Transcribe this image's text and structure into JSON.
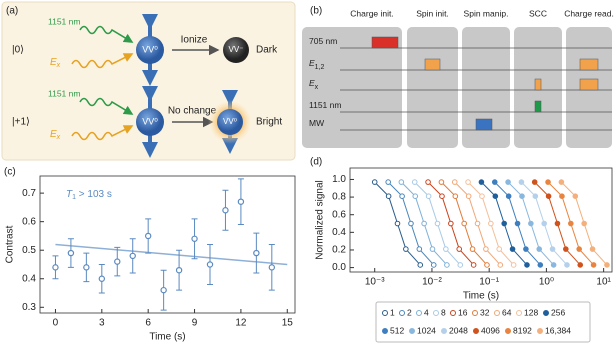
{
  "panel_a": {
    "label": "(a)",
    "rows": [
      {
        "state": "|0⟩",
        "wavelength": "1151 nm",
        "drive": {
          "main": "E",
          "sub": "x"
        },
        "center": "VV⁰",
        "action": "Ionize",
        "outcome_center": "VV⁻",
        "result": "Dark"
      },
      {
        "state": "|+1⟩",
        "wavelength": "1151 nm",
        "drive": {
          "main": "E",
          "sub": "x"
        },
        "center": "VV⁰",
        "action": "No change",
        "outcome_center": "VV⁰",
        "result": "Bright"
      }
    ]
  },
  "panel_b": {
    "label": "(b)",
    "stages": [
      "Charge init.",
      "Spin init.",
      "Spin manip.",
      "SCC",
      "Charge read."
    ],
    "channels": [
      {
        "main": "705 nm"
      },
      {
        "main": "E",
        "sub": "1,2"
      },
      {
        "main": "E",
        "sub": "x"
      },
      {
        "main": "1151 nm"
      },
      {
        "main": "MW"
      }
    ]
  },
  "chart_data": [
    {
      "type": "scatter",
      "panel_label": "(c)",
      "xlabel": "Time (s)",
      "ylabel": "Contrast",
      "annotation": {
        "main": "T",
        "sub": "1",
        "rest": " > 103 s"
      },
      "x": [
        0,
        1,
        2,
        3,
        4,
        5,
        6,
        7,
        8,
        9,
        10,
        11,
        12,
        13,
        14
      ],
      "values": [
        0.44,
        0.49,
        0.44,
        0.4,
        0.46,
        0.48,
        0.55,
        0.36,
        0.43,
        0.54,
        0.45,
        0.64,
        0.67,
        0.49,
        0.44
      ],
      "errors": [
        0.04,
        0.05,
        0.05,
        0.05,
        0.05,
        0.06,
        0.06,
        0.07,
        0.07,
        0.07,
        0.07,
        0.07,
        0.08,
        0.07,
        0.08
      ],
      "color": "#5b8ac0",
      "fit": {
        "x": [
          0,
          15
        ],
        "y": [
          0.52,
          0.45
        ],
        "color": "#8fb0d6"
      },
      "xlim": [
        -1,
        15.5
      ],
      "ylim": [
        0.28,
        0.76
      ],
      "xticks": [
        0,
        3,
        6,
        9,
        12,
        15
      ],
      "yticks": [
        0.3,
        0.4,
        0.5,
        0.6,
        0.7
      ]
    },
    {
      "type": "line",
      "panel_label": "(d)",
      "xlabel": "Time (s)",
      "ylabel": "Normalized signal",
      "xscale": "log",
      "xlim": [
        0.00037,
        14
      ],
      "ylim": [
        -0.05,
        1.13
      ],
      "xticks": [
        {
          "value": 0.001,
          "label": "10⁻³"
        },
        {
          "value": 0.01,
          "label": "10⁻²"
        },
        {
          "value": 0.1,
          "label": "10⁻¹"
        },
        {
          "value": 1,
          "label": "10⁰"
        },
        {
          "value": 10,
          "label": "10¹"
        }
      ],
      "yticks": [
        {
          "value": 0,
          "label": "0.0"
        },
        0.2,
        0.4,
        0.6,
        0.8,
        {
          "value": 1,
          "label": "1.0"
        }
      ],
      "series": [
        {
          "name": "1",
          "color": "#2b5c8a",
          "marker": "open",
          "x": [
            0.001,
            0.00175,
            0.0025,
            0.0035,
            0.00625
          ],
          "values": [
            0.97,
            0.81,
            0.5,
            0.21,
            0.03
          ]
        },
        {
          "name": "2",
          "color": "#4a86b8",
          "marker": "open",
          "x": [
            0.00172,
            0.00301,
            0.0043,
            0.00602,
            0.01075
          ],
          "values": [
            0.97,
            0.81,
            0.5,
            0.21,
            0.03
          ]
        },
        {
          "name": "4",
          "color": "#7fb0d8",
          "marker": "open",
          "x": [
            0.00292,
            0.00511,
            0.0073,
            0.01022,
            0.01825
          ],
          "values": [
            0.97,
            0.81,
            0.5,
            0.21,
            0.03
          ]
        },
        {
          "name": "8",
          "color": "#a9cae6",
          "marker": "open",
          "x": [
            0.005,
            0.00875,
            0.0125,
            0.0175,
            0.03125
          ],
          "values": [
            0.97,
            0.81,
            0.5,
            0.21,
            0.03
          ]
        },
        {
          "name": "16",
          "color": "#c8431e",
          "marker": "open",
          "x": [
            0.00856,
            0.01498,
            0.0214,
            0.02996,
            0.0535
          ],
          "values": [
            0.97,
            0.81,
            0.5,
            0.21,
            0.03
          ]
        },
        {
          "name": "32",
          "color": "#e07b3a",
          "marker": "open",
          "x": [
            0.01464,
            0.02562,
            0.0366,
            0.05124,
            0.0915
          ],
          "values": [
            0.97,
            0.81,
            0.5,
            0.21,
            0.03
          ]
        },
        {
          "name": "64",
          "color": "#f0a878",
          "marker": "open",
          "x": [
            0.02504,
            0.04382,
            0.0626,
            0.08764,
            0.1565
          ],
          "values": [
            0.97,
            0.81,
            0.5,
            0.21,
            0.03
          ]
        },
        {
          "name": "128",
          "color": "#f3bf9a",
          "marker": "open",
          "x": [
            0.0428,
            0.0749,
            0.107,
            0.1498,
            0.2675
          ],
          "values": [
            0.97,
            0.81,
            0.5,
            0.21,
            0.03
          ]
        },
        {
          "name": "256",
          "color": "#1f5f9c",
          "marker": "filled",
          "x": [
            0.0732,
            0.1281,
            0.183,
            0.2562,
            0.4575
          ],
          "values": [
            0.97,
            0.81,
            0.5,
            0.21,
            0.03
          ]
        },
        {
          "name": "512",
          "color": "#3f7fbf",
          "marker": "filled",
          "x": [
            0.1252,
            0.2191,
            0.313,
            0.4382,
            0.7825
          ],
          "values": [
            0.97,
            0.81,
            0.5,
            0.21,
            0.03
          ]
        },
        {
          "name": "1024",
          "color": "#8ab7de",
          "marker": "filled",
          "x": [
            0.214,
            0.3745,
            0.535,
            0.749,
            1.3375
          ],
          "values": [
            0.97,
            0.81,
            0.5,
            0.21,
            0.03
          ]
        },
        {
          "name": "2048",
          "color": "#b4d0ea",
          "marker": "filled",
          "x": [
            0.366,
            0.6405,
            0.915,
            1.281,
            2.2875
          ],
          "values": [
            0.97,
            0.81,
            0.5,
            0.21,
            0.03
          ]
        },
        {
          "name": "4096",
          "color": "#d0521c",
          "marker": "filled",
          "x": [
            0.624,
            1.092,
            1.56,
            2.184,
            3.9
          ],
          "values": [
            0.97,
            0.81,
            0.5,
            0.21,
            0.03
          ]
        },
        {
          "name": "8192",
          "color": "#e8843f",
          "marker": "filled",
          "x": [
            1.068,
            1.869,
            2.67,
            3.738,
            6.675
          ],
          "values": [
            0.97,
            0.81,
            0.5,
            0.21,
            0.03
          ]
        },
        {
          "name": "16,384",
          "color": "#f3b07c",
          "marker": "filled",
          "x": [
            1.828,
            3.199,
            4.57,
            6.398,
            11.425
          ],
          "values": [
            0.97,
            0.81,
            0.5,
            0.21,
            0.03
          ]
        }
      ]
    }
  ]
}
